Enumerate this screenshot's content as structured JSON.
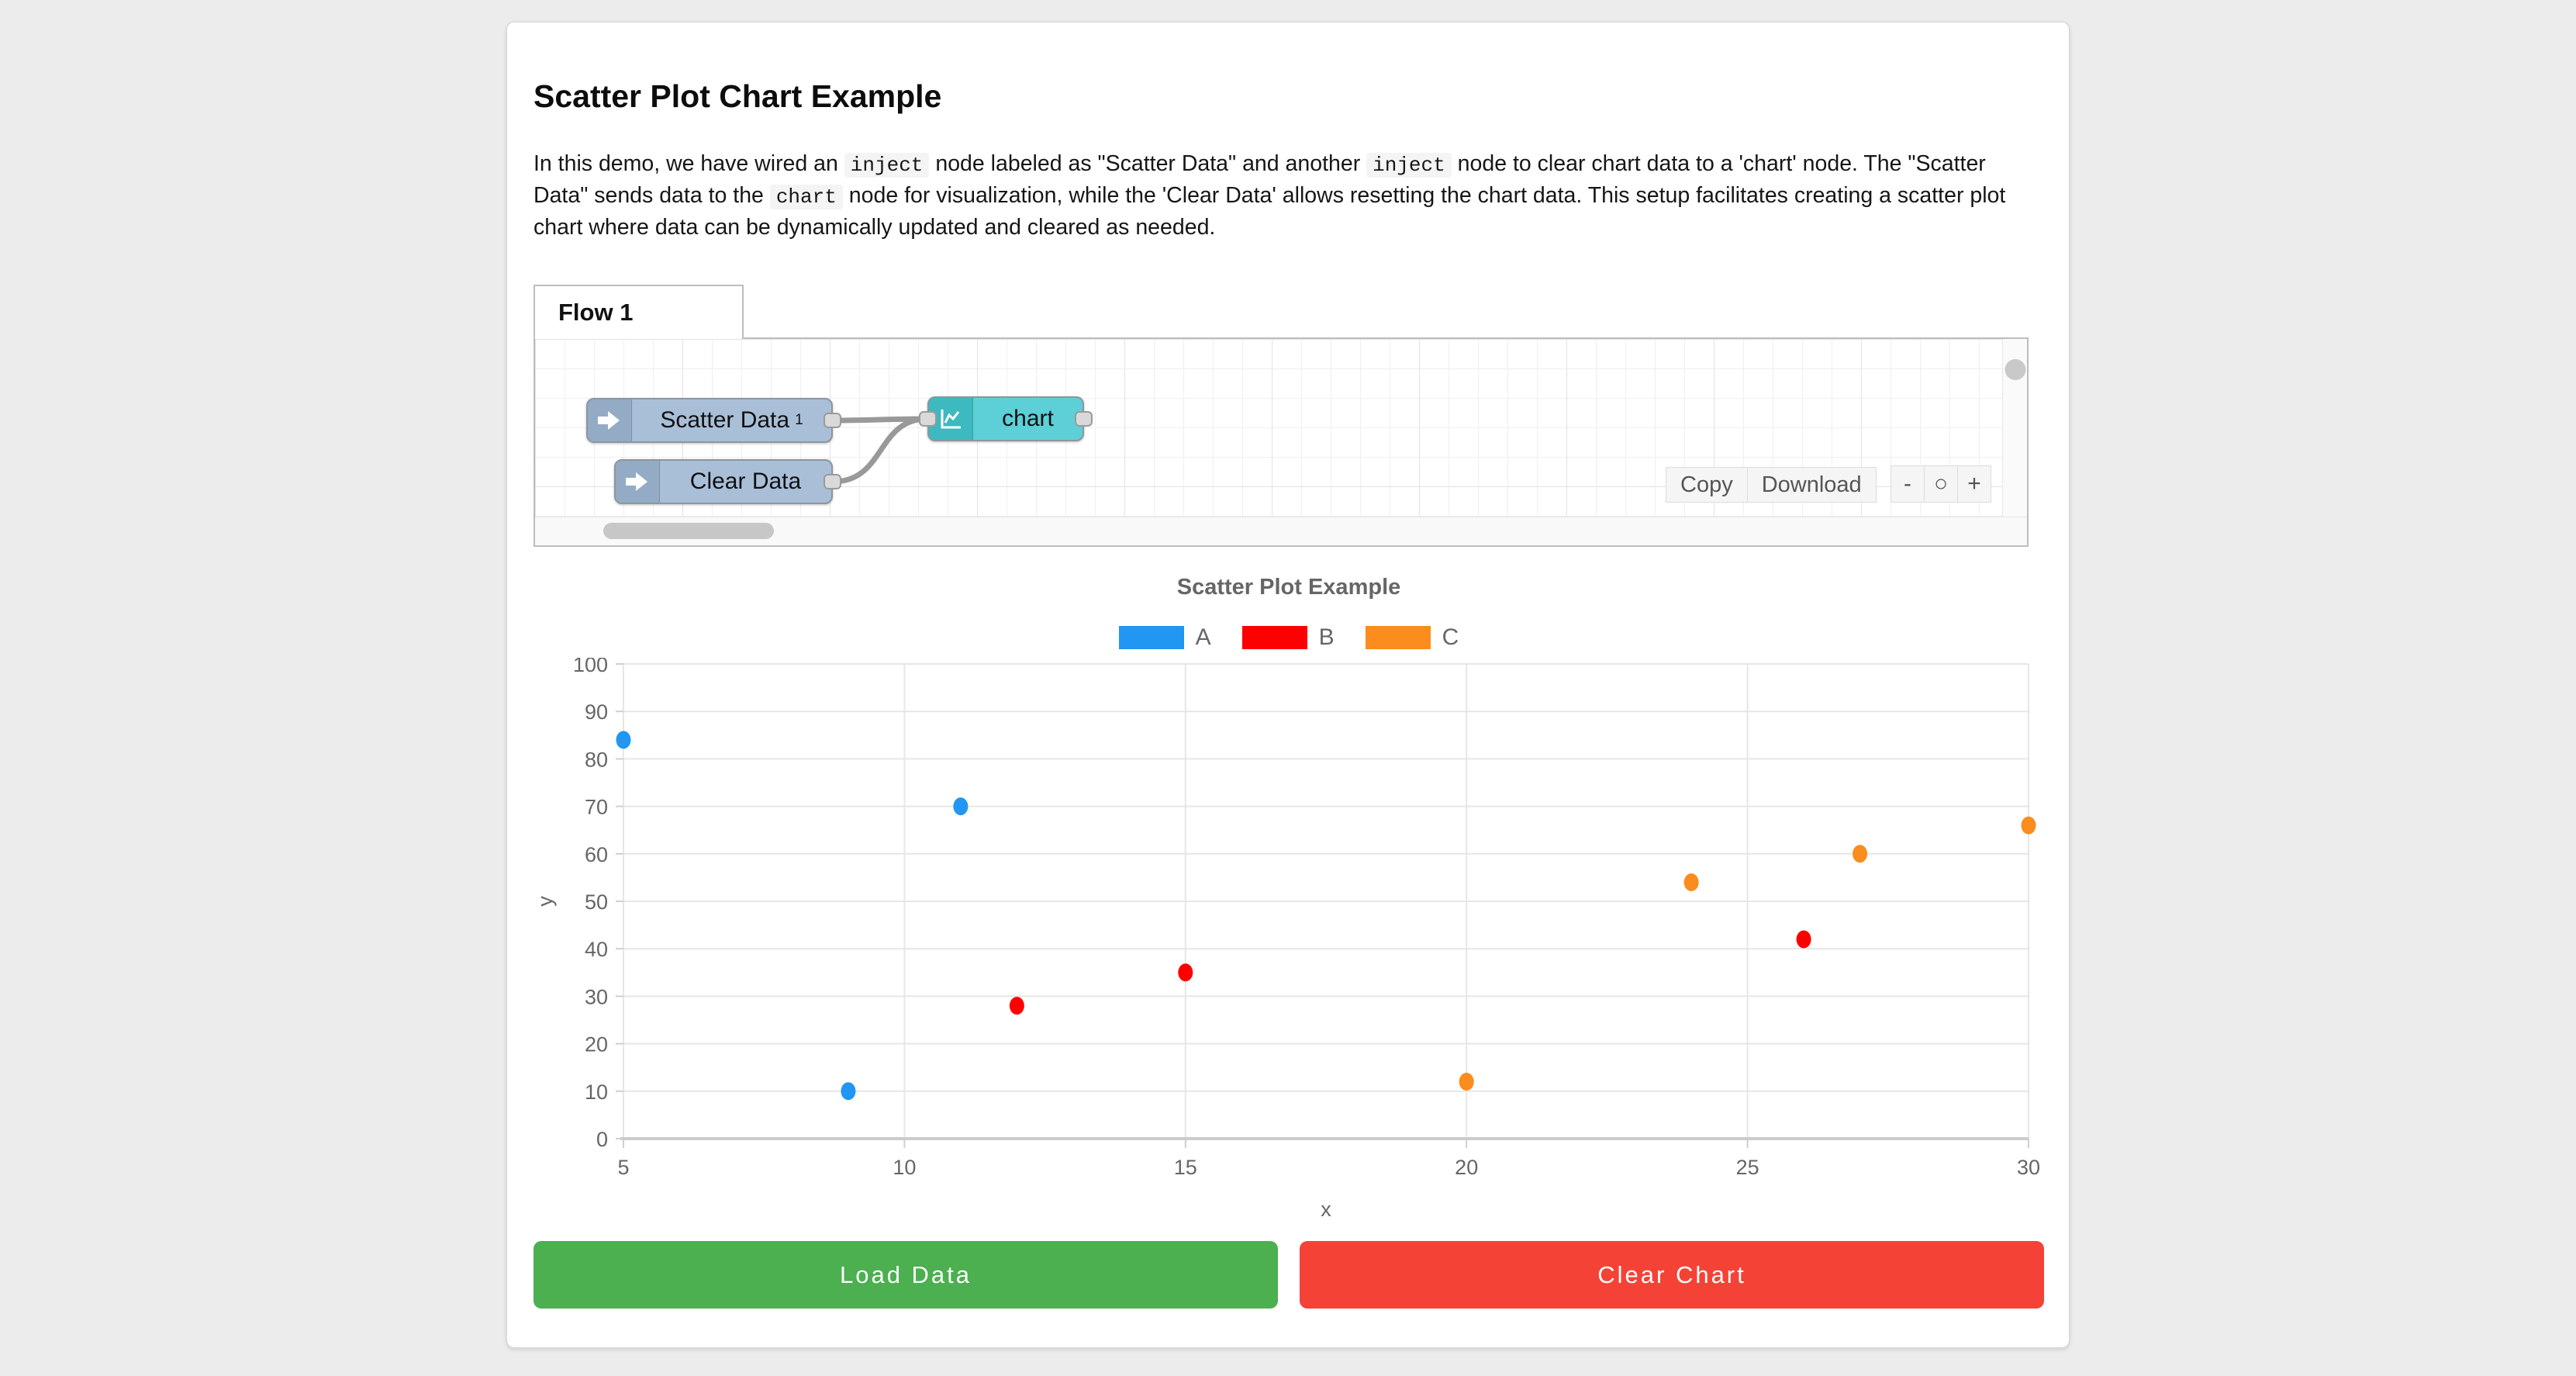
{
  "page_title": "Scatter Plot Chart Example",
  "description_segments": [
    {
      "code": false,
      "text": "In this demo, we have wired an "
    },
    {
      "code": true,
      "text": "inject"
    },
    {
      "code": false,
      "text": " node labeled as \"Scatter Data\" and another "
    },
    {
      "code": true,
      "text": "inject"
    },
    {
      "code": false,
      "text": " node to clear chart data to a 'chart' node. The \"Scatter Data\" sends data to the "
    },
    {
      "code": true,
      "text": "chart"
    },
    {
      "code": false,
      "text": " node for visualization, while the 'Clear Data' allows resetting the chart data. This setup facilitates creating a scatter plot chart where data can be dynamically updated and cleared as needed."
    }
  ],
  "flow": {
    "tab_label": "Flow 1",
    "nodes": {
      "scatter": {
        "label": "Scatter Data",
        "badge": "1"
      },
      "clear": {
        "label": "Clear Data"
      },
      "chart": {
        "label": "chart"
      }
    },
    "toolbar": {
      "copy": "Copy",
      "download": "Download"
    },
    "zoom_controls": {
      "zoom_out": "-",
      "zoom_reset": "○",
      "zoom_in": "+"
    }
  },
  "chart_data": {
    "type": "scatter",
    "title": "Scatter Plot Example",
    "xlabel": "x",
    "ylabel": "y",
    "xlim": [
      5,
      30
    ],
    "ylim": [
      0,
      100
    ],
    "x_ticks": [
      5,
      10,
      15,
      20,
      25,
      30
    ],
    "y_ticks": [
      0,
      10,
      20,
      30,
      40,
      50,
      60,
      70,
      80,
      90,
      100
    ],
    "grid": true,
    "legend_position": "top",
    "series": [
      {
        "name": "A",
        "color": "#2196F3",
        "points": [
          [
            5,
            84
          ],
          [
            9,
            10
          ],
          [
            11,
            70
          ]
        ]
      },
      {
        "name": "B",
        "color": "#FF0000",
        "points": [
          [
            12,
            28
          ],
          [
            15,
            35
          ],
          [
            26,
            42
          ]
        ]
      },
      {
        "name": "C",
        "color": "#FB8C1E",
        "points": [
          [
            20,
            12
          ],
          [
            24,
            54
          ],
          [
            27,
            60
          ],
          [
            30,
            66
          ]
        ]
      }
    ]
  },
  "buttons": {
    "load": "Load Data",
    "clear": "Clear Chart"
  },
  "colors": {
    "load_button": "#4CAF50",
    "clear_button": "#F44336",
    "inject_node": "#A9BFD8",
    "chart_node": "#5CD0D6",
    "wire": "#999999"
  }
}
